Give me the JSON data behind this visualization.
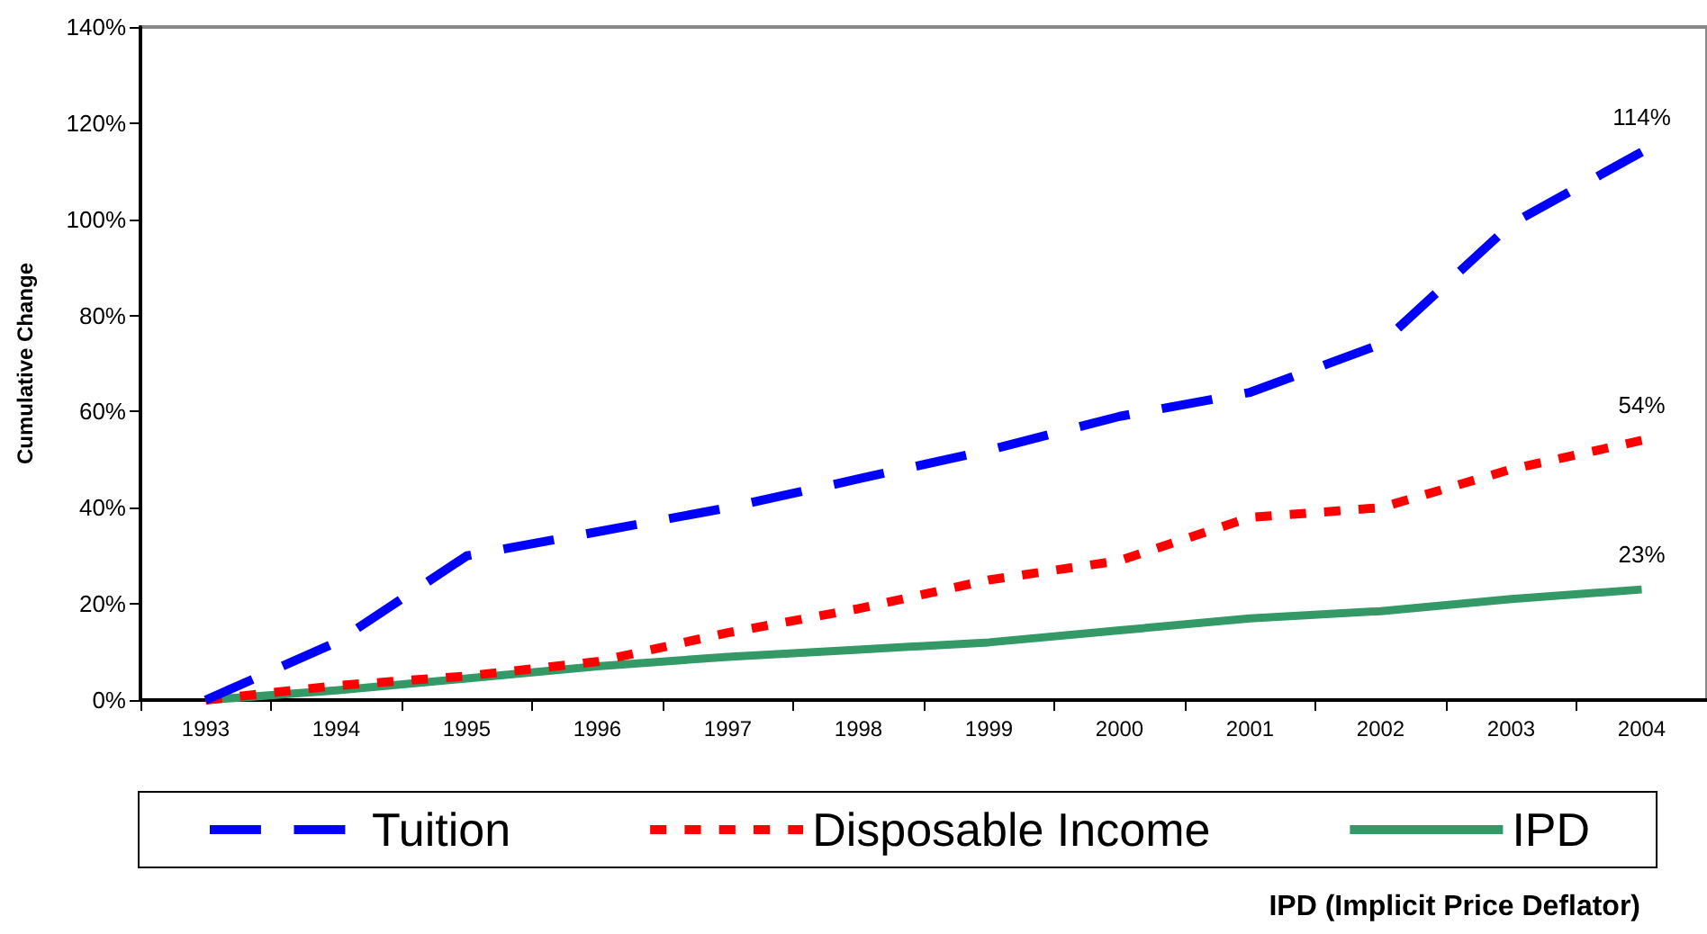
{
  "chart_data": {
    "type": "line",
    "ylabel": "Cumulative Change",
    "categories": [
      "1993",
      "1994",
      "1995",
      "1996",
      "1997",
      "1998",
      "1999",
      "2000",
      "2001",
      "2002",
      "2003",
      "2004"
    ],
    "series": [
      {
        "name": "Tuition",
        "color": "#0000ff",
        "line_style": "dashed",
        "values": [
          0,
          12,
          30,
          35,
          40,
          46,
          52,
          59,
          64,
          74,
          99,
          114
        ],
        "value_labels": [
          null,
          null,
          null,
          null,
          null,
          null,
          null,
          null,
          null,
          null,
          null,
          "114%"
        ]
      },
      {
        "name": "Disposable Income",
        "color": "#ff0000",
        "line_style": "dotted",
        "values": [
          0,
          3,
          5,
          8,
          14,
          19,
          25,
          29,
          38,
          40,
          48,
          54
        ],
        "value_labels": [
          null,
          null,
          null,
          null,
          null,
          null,
          null,
          null,
          null,
          null,
          null,
          "54%"
        ]
      },
      {
        "name": "IPD",
        "color": "#339966",
        "line_style": "solid",
        "values": [
          0,
          2,
          4.5,
          7,
          9,
          10.5,
          12,
          14.5,
          17,
          18.5,
          21,
          23
        ],
        "value_labels": [
          null,
          null,
          null,
          null,
          null,
          null,
          null,
          null,
          null,
          null,
          null,
          "23%"
        ]
      }
    ],
    "ylim": [
      0,
      140
    ],
    "yticks": [
      {
        "value": 0,
        "label": "0%"
      },
      {
        "value": 20,
        "label": "20%"
      },
      {
        "value": 40,
        "label": "40%"
      },
      {
        "value": 60,
        "label": "60%"
      },
      {
        "value": 80,
        "label": "80%"
      },
      {
        "value": 100,
        "label": "100%"
      },
      {
        "value": 120,
        "label": "120%"
      },
      {
        "value": 140,
        "label": "140%"
      }
    ],
    "grid": false,
    "legend": "bottom",
    "marker": "none",
    "annotations": [
      "IPD (Implicit Price Deflator)"
    ]
  }
}
